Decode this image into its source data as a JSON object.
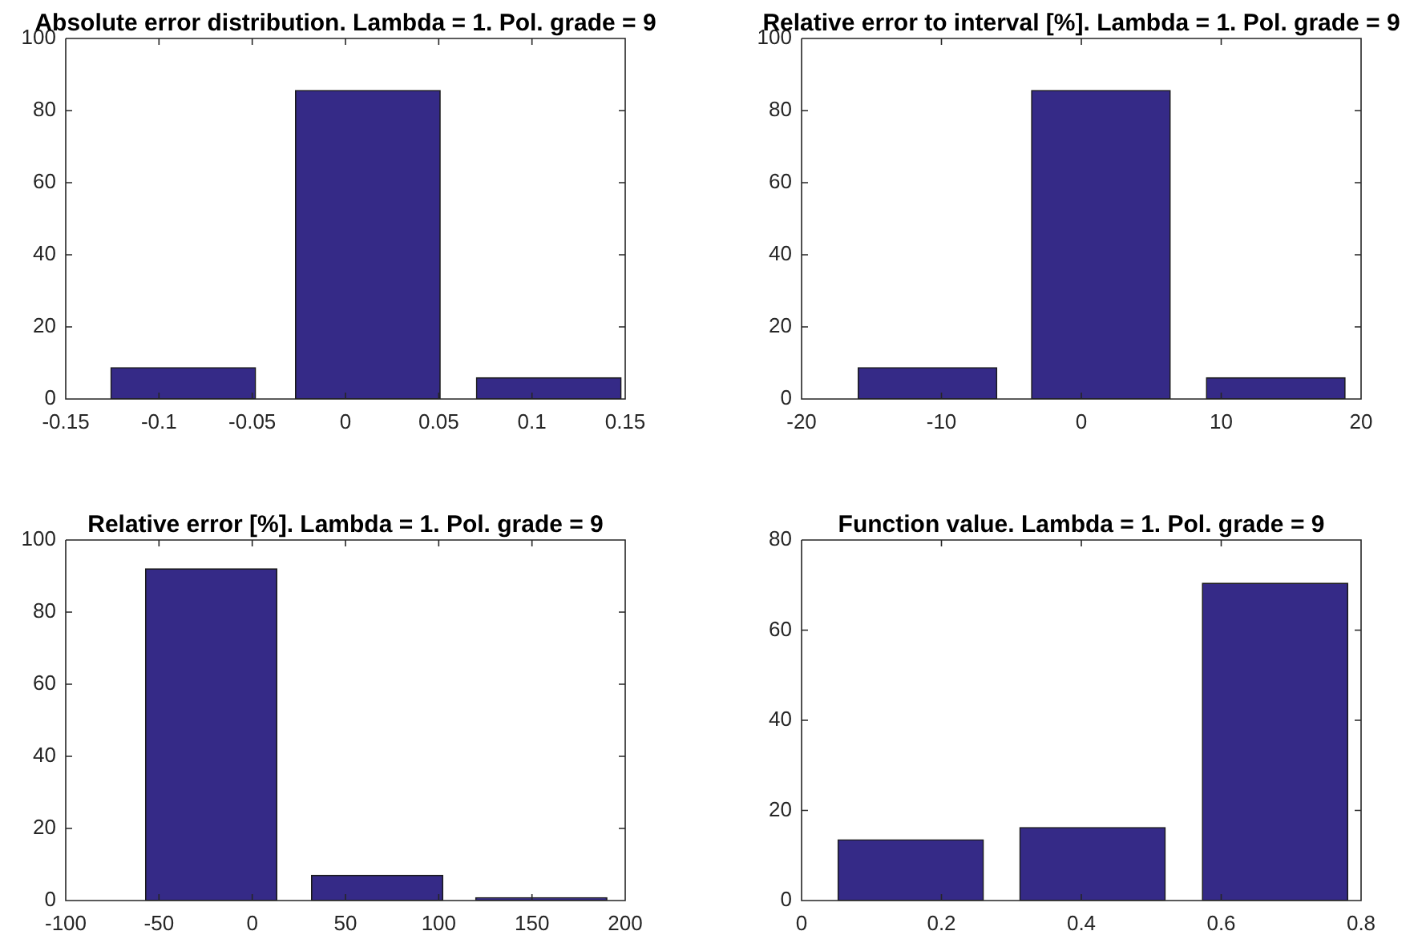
{
  "chart_data": [
    {
      "type": "bar",
      "title": "Absolute error distribution. Lambda = 1. Pol. grade = 9",
      "x": [
        -0.087,
        0.012,
        0.109
      ],
      "values": [
        8.7,
        85.6,
        5.9
      ],
      "color": "#352a87",
      "xlim": [
        -0.15,
        0.15
      ],
      "xticks": [
        -0.15,
        -0.1,
        -0.05,
        0,
        0.05,
        0.1,
        0.15
      ],
      "ylim": [
        0,
        100
      ],
      "yticks": [
        0,
        20,
        40,
        60,
        80,
        100
      ],
      "grid": false,
      "legend": false
    },
    {
      "type": "bar",
      "title": "Relative error to interval [%]. Lambda = 1. Pol. grade = 9",
      "x": [
        -11.0,
        1.4,
        13.9
      ],
      "values": [
        8.7,
        85.6,
        5.9
      ],
      "color": "#352a87",
      "xlim": [
        -20,
        20
      ],
      "xticks": [
        -20,
        -10,
        0,
        10,
        20
      ],
      "ylim": [
        0,
        100
      ],
      "yticks": [
        0,
        20,
        40,
        60,
        80,
        100
      ],
      "grid": false,
      "legend": false
    },
    {
      "type": "bar",
      "title": "Relative error [%]. Lambda = 1. Pol. grade = 9",
      "x": [
        -22,
        67,
        155
      ],
      "values": [
        92.0,
        7.0,
        0.8
      ],
      "color": "#352a87",
      "xlim": [
        -100,
        200
      ],
      "xticks": [
        -100,
        -50,
        0,
        50,
        100,
        150,
        200
      ],
      "ylim": [
        0,
        100
      ],
      "yticks": [
        0,
        20,
        40,
        60,
        80,
        100
      ],
      "grid": false,
      "legend": false
    },
    {
      "type": "bar",
      "title": "Function value. Lambda = 1. Pol. grade = 9",
      "x": [
        0.156,
        0.416,
        0.677
      ],
      "values": [
        13.5,
        16.2,
        70.4
      ],
      "color": "#352a87",
      "xlim": [
        0,
        0.8
      ],
      "xticks": [
        0,
        0.2,
        0.4,
        0.6,
        0.8
      ],
      "ylim": [
        0,
        80
      ],
      "yticks": [
        0,
        20,
        40,
        60,
        80
      ],
      "grid": false,
      "legend": false
    }
  ]
}
